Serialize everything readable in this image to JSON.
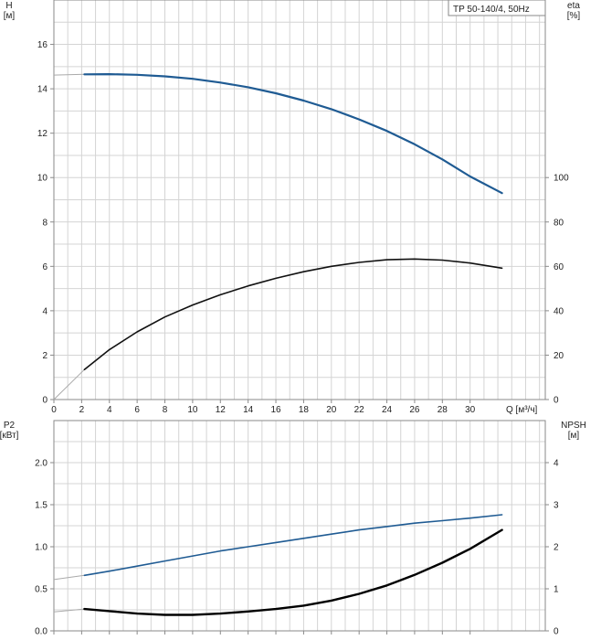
{
  "chart_data": [
    {
      "type": "line",
      "title": "TP 50-140/4, 50Hz",
      "xlabel": "Q [м³/ч]",
      "ylabel_left": "H\n[м]",
      "ylabel_right": "eta\n[%]",
      "xlim": [
        0,
        34
      ],
      "x_ticks": [
        "0",
        "2",
        "4",
        "6",
        "8",
        "10",
        "12",
        "14",
        "16",
        "18",
        "20",
        "22",
        "24",
        "26",
        "28",
        "30"
      ],
      "ylim_left": [
        0,
        18
      ],
      "y_ticks_left": [
        "0",
        "2",
        "4",
        "6",
        "8",
        "10",
        "12",
        "14",
        "16"
      ],
      "ylim_right": [
        0,
        180
      ],
      "y_ticks_right": [
        "0",
        "20",
        "40",
        "60",
        "80",
        "100"
      ],
      "grid": true,
      "series": [
        {
          "axis": "left",
          "color": "#1f5b93",
          "x": [
            0,
            2.2,
            4,
            6,
            8,
            10,
            12,
            14,
            16,
            18,
            20,
            22,
            24,
            26,
            28,
            30,
            32.3
          ],
          "y": [
            14.62,
            14.65,
            14.66,
            14.63,
            14.56,
            14.45,
            14.28,
            14.07,
            13.8,
            13.47,
            13.08,
            12.62,
            12.1,
            11.5,
            10.82,
            10.05,
            9.3
          ],
          "visible_from": 2.2
        },
        {
          "axis": "right",
          "color": "#111111",
          "x": [
            0,
            2.2,
            4,
            6,
            8,
            10,
            12,
            14,
            16,
            18,
            20,
            22,
            24,
            26,
            28,
            30,
            32.3
          ],
          "y": [
            0,
            13.5,
            22.5,
            30.5,
            37.2,
            42.6,
            47.2,
            51.2,
            54.6,
            57.6,
            60,
            61.8,
            63,
            63.3,
            62.8,
            61.5,
            59.2
          ],
          "visible_from": 2.2
        }
      ]
    },
    {
      "type": "line",
      "ylabel_left": "P2\n[кВт]",
      "ylabel_right": "NPSH\n[м]",
      "xlim": [
        0,
        34
      ],
      "ylim_left": [
        0,
        2.5
      ],
      "y_ticks_left": [
        "0.0",
        "0.5",
        "1.0",
        "1.5",
        "2.0"
      ],
      "ylim_right": [
        0,
        5
      ],
      "y_ticks_right": [
        "0",
        "1",
        "2",
        "3",
        "4"
      ],
      "grid": true,
      "series": [
        {
          "axis": "left",
          "color": "#1f5b93",
          "x": [
            0,
            2.2,
            4,
            6,
            8,
            10,
            12,
            14,
            16,
            18,
            20,
            22,
            24,
            26,
            28,
            30,
            32.3
          ],
          "y": [
            0.61,
            0.66,
            0.71,
            0.77,
            0.83,
            0.89,
            0.95,
            1.0,
            1.05,
            1.1,
            1.15,
            1.2,
            1.24,
            1.28,
            1.31,
            1.34,
            1.38
          ],
          "visible_from": 2.2
        },
        {
          "axis": "right",
          "color": "#000000",
          "x": [
            0,
            2.2,
            4,
            6,
            8,
            10,
            12,
            14,
            16,
            18,
            20,
            22,
            24,
            26,
            28,
            30,
            32.3
          ],
          "y": [
            0.45,
            0.52,
            0.47,
            0.41,
            0.38,
            0.38,
            0.41,
            0.46,
            0.52,
            0.6,
            0.72,
            0.88,
            1.08,
            1.33,
            1.62,
            1.95,
            2.4
          ],
          "visible_from": 2.2
        }
      ]
    }
  ]
}
